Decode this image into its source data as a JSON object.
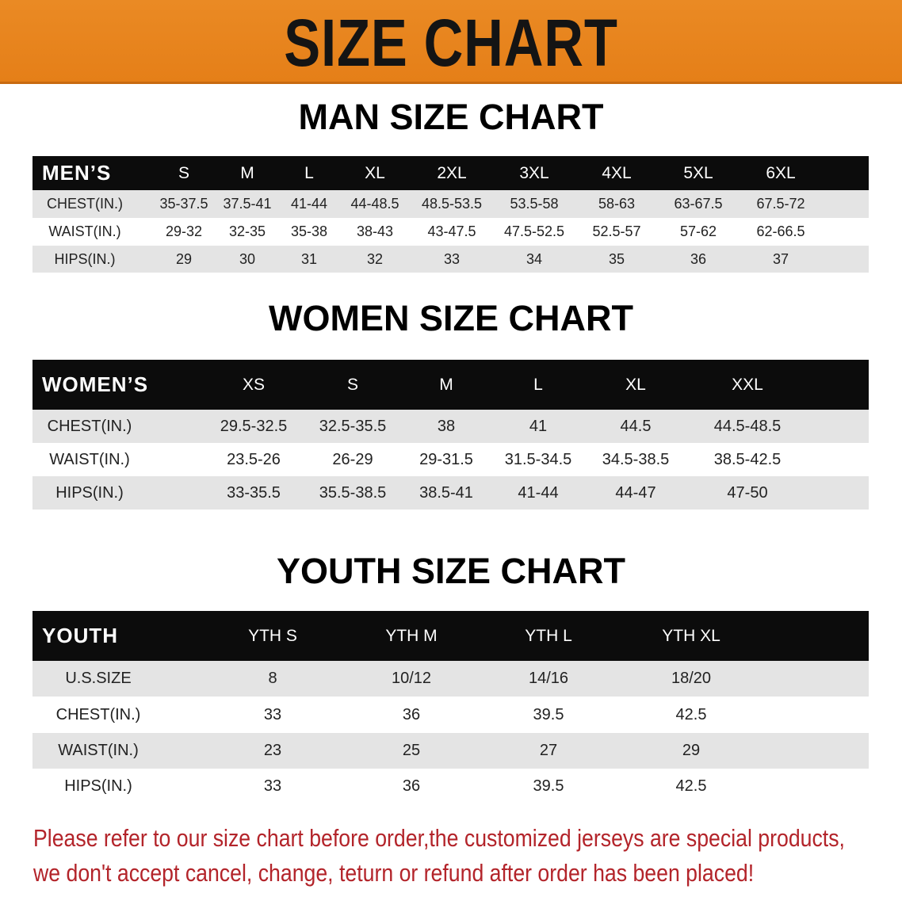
{
  "banner": {
    "title": "SIZE CHART",
    "color": "#E8821E"
  },
  "men": {
    "title": "MAN SIZE CHART",
    "header": [
      "MEN’S",
      "S",
      "M",
      "L",
      "XL",
      "2XL",
      "3XL",
      "4XL",
      "5XL",
      "6XL"
    ],
    "rows": [
      [
        "CHEST(IN.)",
        "35-37.5",
        "37.5-41",
        "41-44",
        "44-48.5",
        "48.5-53.5",
        "53.5-58",
        "58-63",
        "63-67.5",
        "67.5-72"
      ],
      [
        "WAIST(IN.)",
        "29-32",
        "32-35",
        "35-38",
        "38-43",
        "43-47.5",
        "47.5-52.5",
        "52.5-57",
        "57-62",
        "62-66.5"
      ],
      [
        "HIPS(IN.)",
        "29",
        "30",
        "31",
        "32",
        "33",
        "34",
        "35",
        "36",
        "37"
      ]
    ]
  },
  "women": {
    "title": "WOMEN SIZE CHART",
    "header": [
      "WOMEN’S",
      "XS",
      "S",
      "M",
      "L",
      "XL",
      "XXL"
    ],
    "rows": [
      [
        "CHEST(IN.)",
        "29.5-32.5",
        "32.5-35.5",
        "38",
        "41",
        "44.5",
        "44.5-48.5"
      ],
      [
        "WAIST(IN.)",
        "23.5-26",
        "26-29",
        "29-31.5",
        "31.5-34.5",
        "34.5-38.5",
        "38.5-42.5"
      ],
      [
        "HIPS(IN.)",
        "33-35.5",
        "35.5-38.5",
        "38.5-41",
        "41-44",
        "44-47",
        "47-50"
      ]
    ]
  },
  "youth": {
    "title": "YOUTH SIZE CHART",
    "header": [
      "YOUTH",
      "YTH S",
      "YTH M",
      "YTH L",
      "YTH XL"
    ],
    "rows": [
      [
        "U.S.SIZE",
        "8",
        "10/12",
        "14/16",
        "18/20"
      ],
      [
        "CHEST(IN.)",
        "33",
        "36",
        "39.5",
        "42.5"
      ],
      [
        "WAIST(IN.)",
        "23",
        "25",
        "27",
        "29"
      ],
      [
        "HIPS(IN.)",
        "33",
        "36",
        "39.5",
        "42.5"
      ]
    ]
  },
  "notice": {
    "line1": "Please refer to our size chart before order,the customized jerseys are special products,",
    "line2": "we don't accept cancel, change, teturn or refund after order has been placed!",
    "color": "#B3242A"
  }
}
